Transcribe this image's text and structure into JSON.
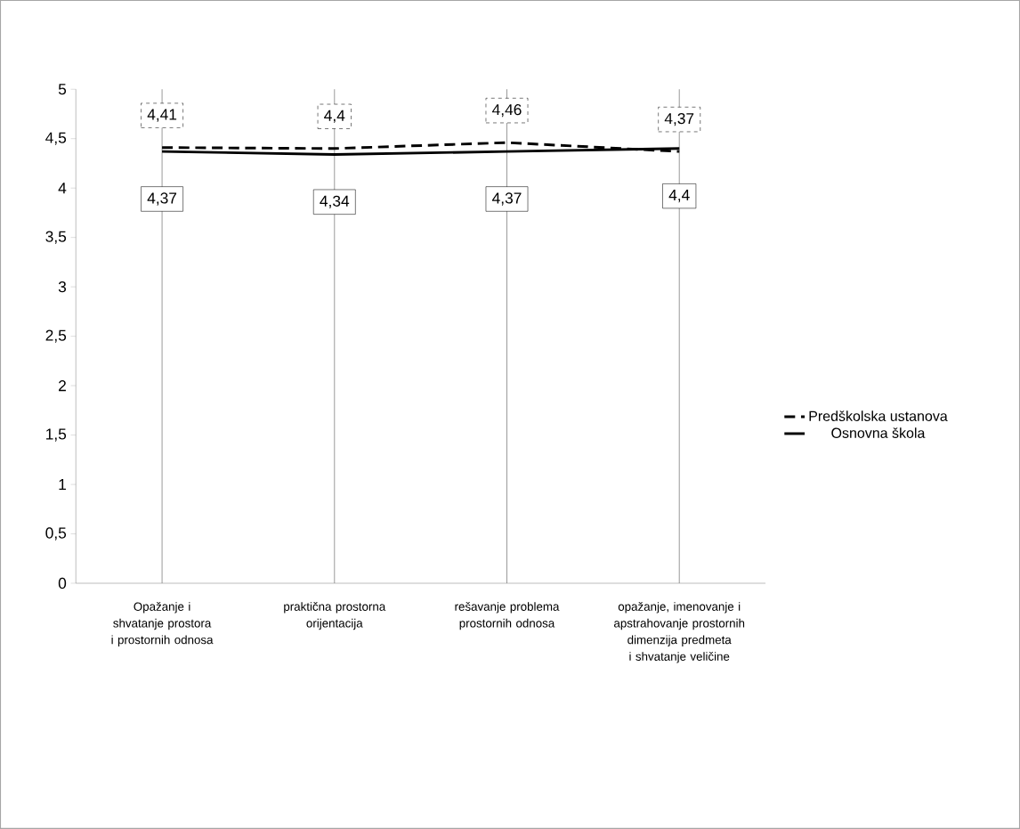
{
  "chart_data": {
    "type": "line",
    "categories": [
      "Opažanje i shvatanje prostora i prostornih odnosa",
      "praktična prostorna orijentacija",
      "rešavanje problema prostornih odnosa",
      "opažanje, imenovanje i apstrahovanje prostornih dimenzija predmeta i shvatanje veličine"
    ],
    "series": [
      {
        "name": "Predškolska ustanova",
        "color": "#000000",
        "line_style": "dashed",
        "values": [
          4.41,
          4.4,
          4.46,
          4.37
        ],
        "value_labels": [
          "4,41",
          "4,4",
          "4,46",
          "4,37"
        ]
      },
      {
        "name": "Osnovna škola",
        "color": "#000000",
        "line_style": "solid",
        "values": [
          4.37,
          4.34,
          4.37,
          4.4
        ],
        "value_labels": [
          "4,37",
          "4,34",
          "4,37",
          "4,4"
        ]
      }
    ],
    "ylim": [
      0,
      5
    ],
    "yticks": [
      0,
      {
        "value": 0.5,
        "label": "0,5"
      },
      1,
      {
        "value": 1.5,
        "label": "1,5"
      },
      2,
      {
        "value": 2.5,
        "label": "2,5"
      },
      3,
      {
        "value": 3.5,
        "label": "3,5"
      },
      4,
      {
        "value": 4.5,
        "label": "4,5"
      },
      5
    ],
    "grid": "x",
    "legend": "right",
    "marker": "none"
  }
}
